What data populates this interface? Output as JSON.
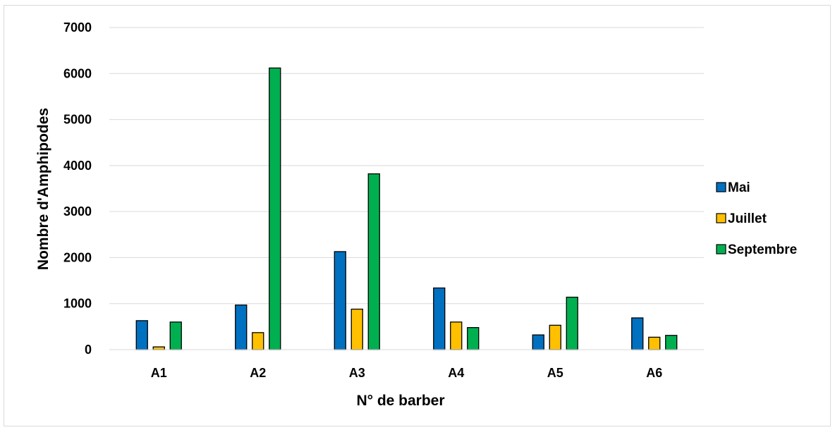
{
  "chart_data": {
    "type": "bar",
    "categories": [
      "A1",
      "A2",
      "A3",
      "A4",
      "A5",
      "A6"
    ],
    "series": [
      {
        "name": "Mai",
        "color": "#0070c0",
        "values": [
          630,
          970,
          2130,
          1340,
          320,
          690
        ]
      },
      {
        "name": "Juillet",
        "color": "#ffc000",
        "values": [
          60,
          370,
          880,
          600,
          530,
          270
        ]
      },
      {
        "name": "Septembre",
        "color": "#00b050",
        "values": [
          600,
          6120,
          3820,
          480,
          1140,
          310
        ]
      }
    ],
    "xlabel": "N° de barber",
    "ylabel": "Nombre d'Amphipodes",
    "ylim": [
      0,
      7000
    ],
    "yticks": [
      0,
      1000,
      2000,
      3000,
      4000,
      5000,
      6000,
      7000
    ],
    "grid": true,
    "legend_position": "right"
  }
}
